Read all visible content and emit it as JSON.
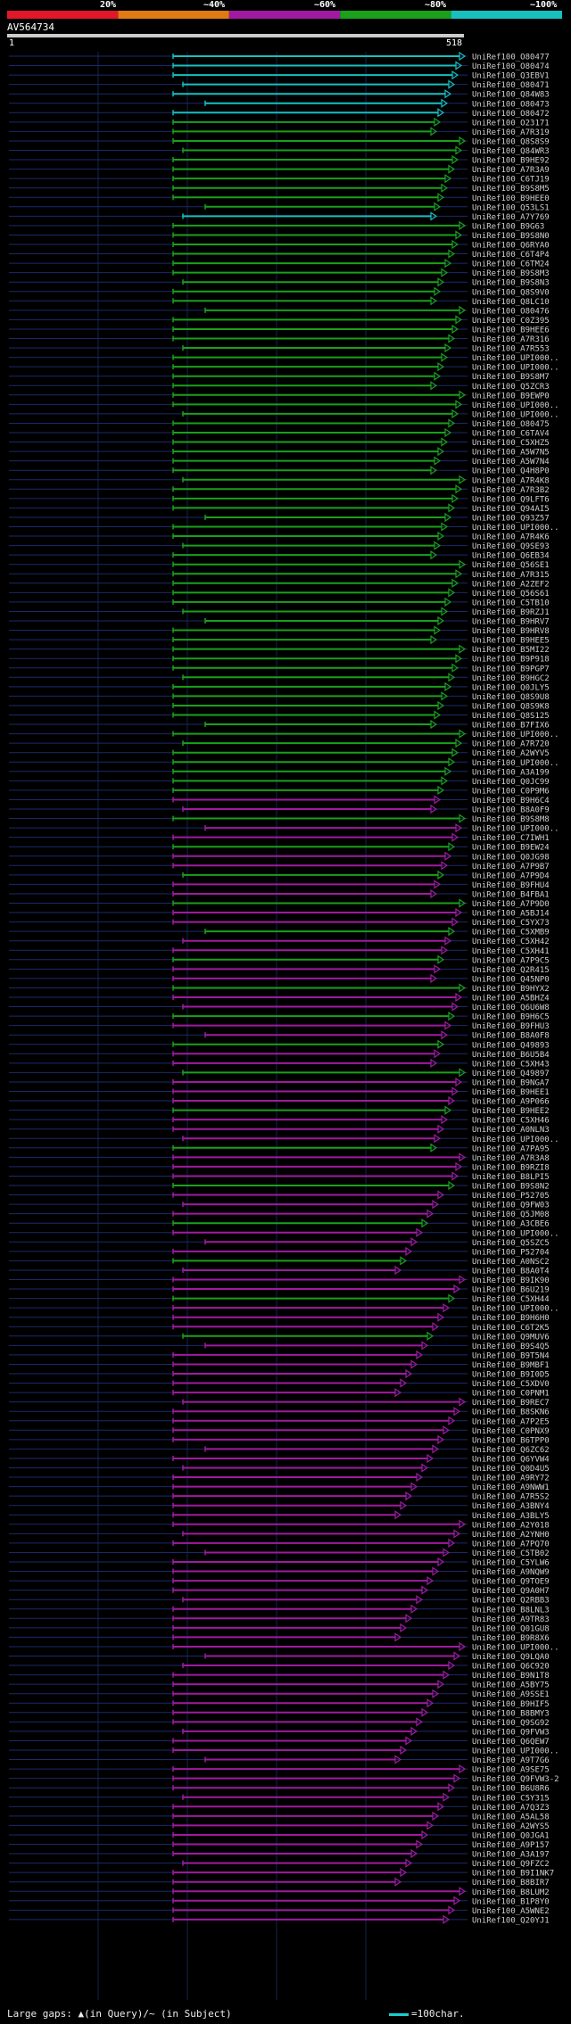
{
  "legend": {
    "labels": [
      "20%",
      "~40%",
      "~60%",
      "~80%",
      "~100%"
    ],
    "colors": [
      "#e0182a",
      "#e07a12",
      "#a01aa0",
      "#1aa01a",
      "#17bfbf"
    ]
  },
  "query": {
    "name": "AV564734",
    "start": "1",
    "end": "518"
  },
  "hits": [
    "UniRef100_O80477",
    "UniRef100_O80474",
    "UniRef100_Q3EBV1",
    "UniRef100_O80471",
    "UniRef100_Q84W83",
    "UniRef100_O80473",
    "UniRef100_O80472",
    "UniRef100_O23171",
    "UniRef100_A7R319",
    "UniRef100_Q8S8S9",
    "UniRef100_Q84WR3",
    "UniRef100_B9HE92",
    "UniRef100_A7R3A9",
    "UniRef100_C6TJ19",
    "UniRef100_B9S8M5",
    "UniRef100_B9HEE0",
    "UniRef100_Q53LS1",
    "UniRef100_A7Y769",
    "UniRef100_B9G63",
    "UniRef100_B9S8N0",
    "UniRef100_Q6RYA0",
    "UniRef100_C6T4P4",
    "UniRef100_C6TM24",
    "UniRef100_B9S8M3",
    "UniRef100_B9S8N3",
    "UniRef100_Q8S9V0",
    "UniRef100_Q8LC10",
    "UniRef100_O80476",
    "UniRef100_C0Z395",
    "UniRef100_B9HEE6",
    "UniRef100_A7R316",
    "UniRef100_A7R553",
    "UniRef100_UPI000..",
    "UniRef100_UPI000..",
    "UniRef100_B9S8M7",
    "UniRef100_Q5ZCR3",
    "UniRef100_B9EWP0",
    "UniRef100_UPI000..",
    "UniRef100_UPI000..",
    "UniRef100_O80475",
    "UniRef100_C6TAV4",
    "UniRef100_C5XHZ5",
    "UniRef100_A5W7N5",
    "UniRef100_A5W7N4",
    "UniRef100_Q4H8P0",
    "UniRef100_A7R4K8",
    "UniRef100_A7R3B2",
    "UniRef100_Q9LFT6",
    "UniRef100_Q94AI5",
    "UniRef100_Q93Z57",
    "UniRef100_UPI000..",
    "UniRef100_A7R4K6",
    "UniRef100_Q9SE93",
    "UniRef100_Q6EB34",
    "UniRef100_Q56SE1",
    "UniRef100_A7R315",
    "UniRef100_A2ZEF2",
    "UniRef100_Q56S61",
    "UniRef100_C5TB10",
    "UniRef100_B9RZJ1",
    "UniRef100_B9HRV7",
    "UniRef100_B9HRV8",
    "UniRef100_B9HEE5",
    "UniRef100_B5MI22",
    "UniRef100_B9P918",
    "UniRef100_B9PGP7",
    "UniRef100_B9HGC2",
    "UniRef100_Q0JLY5",
    "UniRef100_Q8S9U8",
    "UniRef100_Q8S9K8",
    "UniRef100_Q8S125",
    "UniRef100_B7FIX6",
    "UniRef100_UPI000..",
    "UniRef100_A7R720",
    "UniRef100_A2WYV5",
    "UniRef100_UPI000..",
    "UniRef100_A3A199",
    "UniRef100_Q0JC99",
    "UniRef100_C0P9M6",
    "UniRef100_B9H6C4",
    "UniRef100_B8A0F9",
    "UniRef100_B9S8M8",
    "UniRef100_UPI000..",
    "UniRef100_C7IWH1",
    "UniRef100_B9EW24",
    "UniRef100_Q0JG98",
    "UniRef100_A7P9B7",
    "UniRef100_A7P9D4",
    "UniRef100_B9FHU4",
    "UniRef100_B4FBA1",
    "UniRef100_A7P9D0",
    "UniRef100_A5BJ14",
    "UniRef100_C5YX73",
    "UniRef100_C5XMB9",
    "UniRef100_C5XH42",
    "UniRef100_C5XH41",
    "UniRef100_A7P9C5",
    "UniRef100_Q2R415",
    "UniRef100_Q45NP0",
    "UniRef100_B9HYX2",
    "UniRef100_A5BHZ4",
    "UniRef100_Q6U6W8",
    "UniRef100_B9H6C5",
    "UniRef100_B9FHU3",
    "UniRef100_B8A0F8",
    "UniRef100_Q49893",
    "UniRef100_B6U5B4",
    "UniRef100_C5XH43",
    "UniRef100_Q49897",
    "UniRef100_B9NGA7",
    "UniRef100_B9HEE1",
    "UniRef100_A9P066",
    "UniRef100_B9HEE2",
    "UniRef100_C5XH46",
    "UniRef100_A0NLN3",
    "UniRef100_UPI000..",
    "UniRef100_A7PA95",
    "UniRef100_A7R3A8",
    "UniRef100_B9RZI8",
    "UniRef100_B8LPI5",
    "UniRef100_B9S8N2",
    "UniRef100_P52705",
    "UniRef100_Q9FW03",
    "UniRef100_Q5JM08",
    "UniRef100_A3CBE6",
    "UniRef100_UPI000..",
    "UniRef100_Q5SZC5",
    "UniRef100_P52704",
    "UniRef100_A0NSC2",
    "UniRef100_B8A0T4",
    "UniRef100_B9IK90",
    "UniRef100_B6U219",
    "UniRef100_C5XH44",
    "UniRef100_UPI000..",
    "UniRef100_B9H6H0",
    "UniRef100_C6T2K5",
    "UniRef100_Q9MUV6",
    "UniRef100_B9S4Q5",
    "UniRef100_B9T5N4",
    "UniRef100_B9MBF1",
    "UniRef100_B9I0D5",
    "UniRef100_C5XDV0",
    "UniRef100_C0PNM1",
    "UniRef100_B9REC7",
    "UniRef100_B8SKN6",
    "UniRef100_A7P2E5",
    "UniRef100_C0PNX9",
    "UniRef100_B6TPP0",
    "UniRef100_Q6ZC62",
    "UniRef100_Q6YVW4",
    "UniRef100_Q0D4U5",
    "UniRef100_A9RY72",
    "UniRef100_A9NWW1",
    "UniRef100_A7R5S2",
    "UniRef100_A3BNY4",
    "UniRef100_A3BLY5",
    "UniRef100_A2Y018",
    "UniRef100_A2YNH0",
    "UniRef100_A7PQ70",
    "UniRef100_C5TB02",
    "UniRef100_C5YLW6",
    "UniRef100_A9NQW9",
    "UniRef100_Q9TOE9",
    "UniRef100_Q9A0H7",
    "UniRef100_Q2RBB3",
    "UniRef100_B8LNL3",
    "UniRef100_A9TR83",
    "UniRef100_Q01GU8",
    "UniRef100_B9R8X6",
    "UniRef100_UPI000..",
    "UniRef100_Q9LQA0",
    "UniRef100_Q6C920",
    "UniRef100_B9N1T8",
    "UniRef100_A5BY75",
    "UniRef100_A9SSE1",
    "UniRef100_B9HIF5",
    "UniRef100_B8BMY3",
    "UniRef100_Q9SG92",
    "UniRef100_Q9FVW3",
    "UniRef100_Q6QEW7",
    "UniRef100_UPI000..",
    "UniRef100_A9T7G6",
    "UniRef100_A9SE75",
    "UniRef100_Q9FVW3-2",
    "UniRef100_B6U8R6",
    "UniRef100_C5Y315",
    "UniRef100_A7Q3Z3",
    "UniRef100_A5AL58",
    "UniRef100_A2WYS5",
    "UniRef100_Q0JGA1",
    "UniRef100_A9P157",
    "UniRef100_A3A197",
    "UniRef100_Q9FZC2",
    "UniRef100_B9I1NK7",
    "UniRef100_B8BIR7",
    "UniRef100_B8LUM2",
    "UniRef100_B1P8Y0",
    "UniRef100_A5WNE2",
    "UniRef100_Q20YJ1"
  ],
  "footer": {
    "gaps_text": "Large gaps: ▲(in Query)/~ (in Subject)",
    "scale_text": "=100char."
  }
}
